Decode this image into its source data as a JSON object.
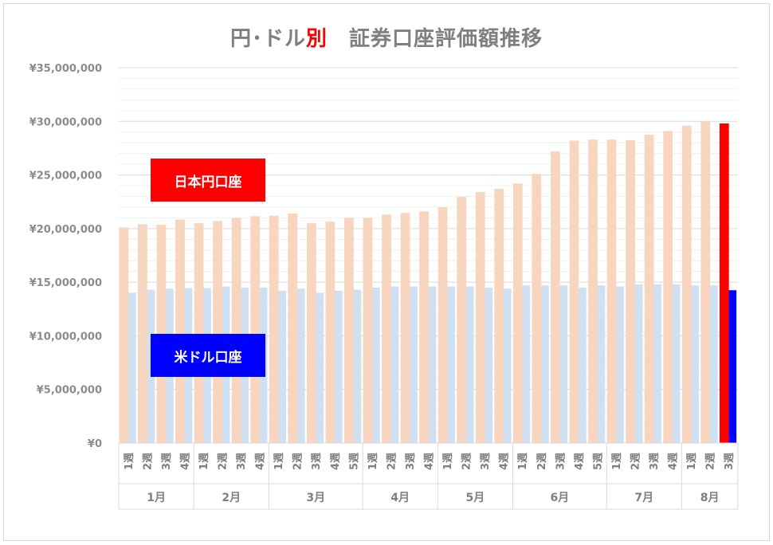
{
  "chart_data": {
    "type": "bar",
    "title_parts": [
      "円･ドル",
      "別",
      "　証券口座評価額推移"
    ],
    "yticks": [
      "¥0",
      "¥5,000,000",
      "¥10,000,000",
      "¥15,000,000",
      "¥20,000,000",
      "¥25,000,000",
      "¥30,000,000",
      "¥35,000,000"
    ],
    "ylim": [
      0,
      35000000
    ],
    "grid": true,
    "months": [
      {
        "label": "1月",
        "weeks": 4
      },
      {
        "label": "2月",
        "weeks": 4
      },
      {
        "label": "3月",
        "weeks": 5
      },
      {
        "label": "4月",
        "weeks": 4
      },
      {
        "label": "5月",
        "weeks": 4
      },
      {
        "label": "6月",
        "weeks": 5
      },
      {
        "label": "7月",
        "weeks": 4
      },
      {
        "label": "8月",
        "weeks": 3
      }
    ],
    "categories": [
      "1週",
      "2週",
      "3週",
      "4週",
      "1週",
      "2週",
      "3週",
      "4週",
      "1週",
      "2週",
      "3週",
      "4週",
      "5週",
      "1週",
      "2週",
      "3週",
      "4週",
      "1週",
      "2週",
      "3週",
      "4週",
      "1週",
      "2週",
      "3週",
      "4週",
      "5週",
      "1週",
      "2週",
      "3週",
      "4週",
      "1週",
      "2週",
      "3週"
    ],
    "series": [
      {
        "name": "日本円口座",
        "values": [
          20100000,
          20400000,
          20350000,
          20850000,
          20500000,
          20700000,
          21000000,
          21150000,
          21200000,
          21400000,
          20500000,
          20650000,
          21000000,
          21000000,
          21300000,
          21450000,
          21600000,
          22000000,
          22950000,
          23400000,
          23700000,
          24200000,
          25100000,
          27200000,
          28200000,
          28300000,
          28300000,
          28250000,
          28750000,
          29100000,
          29600000,
          30000000,
          29800000
        ]
      },
      {
        "name": "米ドル口座",
        "values": [
          14000000,
          14300000,
          14400000,
          14450000,
          14450000,
          14600000,
          14500000,
          14500000,
          14200000,
          14400000,
          14000000,
          14200000,
          14300000,
          14500000,
          14600000,
          14600000,
          14600000,
          14600000,
          14600000,
          14500000,
          14400000,
          14700000,
          14700000,
          14700000,
          14500000,
          14700000,
          14600000,
          14800000,
          14800000,
          14800000,
          14700000,
          14700000,
          14250000
        ]
      }
    ],
    "colors": {
      "jpy_faded": "#f8d5bf",
      "usd_faded": "#cfe0f3",
      "jpy_highlight": "#ff0000",
      "usd_highlight": "#0000ff",
      "grid": "#d9d9d9",
      "text": "#7f7f7f"
    },
    "highlight_last": true
  }
}
